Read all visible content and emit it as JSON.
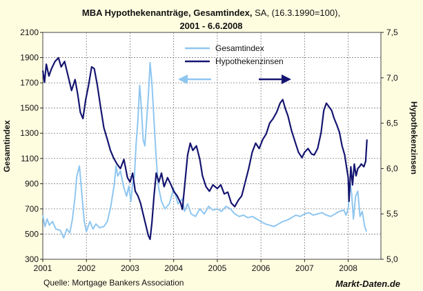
{
  "chart_data": {
    "type": "line",
    "title_bold": "MBA Hypothekenanträge, Gesamtindex,",
    "title_rest": " SA, (16.3.1990=100),",
    "subtitle": "2001 - 6.6.2008",
    "ylabel_left": "Gesamtindex",
    "ylabel_right": "Hypothekenzinsen",
    "source": "Quelle: Mortgage Bankers Association",
    "brand": "Markt-Daten.de",
    "x_ticks": [
      "2001",
      "2002",
      "2003",
      "2004",
      "2005",
      "2006",
      "2007",
      "2008"
    ],
    "xlim": [
      2001.0,
      2008.75
    ],
    "y_left": {
      "lim": [
        300,
        2100
      ],
      "ticks": [
        "300",
        "500",
        "700",
        "900",
        "1100",
        "1300",
        "1500",
        "1700",
        "1900",
        "2100"
      ]
    },
    "y_right": {
      "lim": [
        5.0,
        7.5
      ],
      "ticks": [
        "5,0",
        "5,5",
        "6,0",
        "6,5",
        "7,0",
        "7,5"
      ]
    },
    "legend": {
      "position": "top-center",
      "entries": [
        "Gesamtindex",
        "Hypothekenzinsen"
      ]
    },
    "colors": {
      "index": "#8ec6f0",
      "rate": "#141470",
      "plot_bg": "#ffffff",
      "page_bg": "#fffde0",
      "grid": "#7a7a7a"
    },
    "series": [
      {
        "name": "Gesamtindex",
        "axis": "left",
        "points": [
          [
            2001.0,
            650
          ],
          [
            2001.05,
            560
          ],
          [
            2001.1,
            620
          ],
          [
            2001.15,
            570
          ],
          [
            2001.22,
            600
          ],
          [
            2001.3,
            540
          ],
          [
            2001.4,
            530
          ],
          [
            2001.48,
            470
          ],
          [
            2001.55,
            540
          ],
          [
            2001.62,
            510
          ],
          [
            2001.68,
            620
          ],
          [
            2001.74,
            800
          ],
          [
            2001.78,
            960
          ],
          [
            2001.84,
            1040
          ],
          [
            2001.9,
            800
          ],
          [
            2001.95,
            600
          ],
          [
            2002.0,
            520
          ],
          [
            2002.08,
            600
          ],
          [
            2002.15,
            540
          ],
          [
            2002.22,
            580
          ],
          [
            2002.3,
            550
          ],
          [
            2002.4,
            560
          ],
          [
            2002.48,
            600
          ],
          [
            2002.56,
            720
          ],
          [
            2002.64,
            900
          ],
          [
            2002.68,
            1040
          ],
          [
            2002.72,
            960
          ],
          [
            2002.78,
            1000
          ],
          [
            2002.85,
            880
          ],
          [
            2002.92,
            800
          ],
          [
            2002.97,
            880
          ],
          [
            2003.02,
            760
          ],
          [
            2003.06,
            900
          ],
          [
            2003.1,
            960
          ],
          [
            2003.14,
            1220
          ],
          [
            2003.18,
            1400
          ],
          [
            2003.22,
            1680
          ],
          [
            2003.26,
            1500
          ],
          [
            2003.3,
            1250
          ],
          [
            2003.34,
            1200
          ],
          [
            2003.38,
            1400
          ],
          [
            2003.42,
            1600
          ],
          [
            2003.46,
            1860
          ],
          [
            2003.5,
            1700
          ],
          [
            2003.55,
            1400
          ],
          [
            2003.6,
            1100
          ],
          [
            2003.65,
            880
          ],
          [
            2003.72,
            760
          ],
          [
            2003.8,
            700
          ],
          [
            2003.9,
            740
          ],
          [
            2004.0,
            860
          ],
          [
            2004.1,
            740
          ],
          [
            2004.2,
            780
          ],
          [
            2004.25,
            680
          ],
          [
            2004.32,
            740
          ],
          [
            2004.4,
            660
          ],
          [
            2004.5,
            640
          ],
          [
            2004.6,
            700
          ],
          [
            2004.7,
            660
          ],
          [
            2004.8,
            720
          ],
          [
            2004.9,
            690
          ],
          [
            2005.0,
            700
          ],
          [
            2005.1,
            680
          ],
          [
            2005.2,
            720
          ],
          [
            2005.3,
            700
          ],
          [
            2005.4,
            660
          ],
          [
            2005.5,
            640
          ],
          [
            2005.6,
            650
          ],
          [
            2005.7,
            630
          ],
          [
            2005.8,
            640
          ],
          [
            2005.9,
            620
          ],
          [
            2006.0,
            600
          ],
          [
            2006.1,
            580
          ],
          [
            2006.2,
            570
          ],
          [
            2006.3,
            560
          ],
          [
            2006.4,
            580
          ],
          [
            2006.5,
            600
          ],
          [
            2006.6,
            610
          ],
          [
            2006.7,
            630
          ],
          [
            2006.8,
            650
          ],
          [
            2006.9,
            640
          ],
          [
            2007.0,
            660
          ],
          [
            2007.1,
            670
          ],
          [
            2007.2,
            650
          ],
          [
            2007.3,
            660
          ],
          [
            2007.4,
            670
          ],
          [
            2007.5,
            650
          ],
          [
            2007.6,
            640
          ],
          [
            2007.7,
            660
          ],
          [
            2007.8,
            680
          ],
          [
            2007.9,
            690
          ],
          [
            2007.95,
            650
          ],
          [
            2008.0,
            700
          ],
          [
            2008.05,
            900
          ],
          [
            2008.08,
            820
          ],
          [
            2008.12,
            620
          ],
          [
            2008.17,
            800
          ],
          [
            2008.22,
            840
          ],
          [
            2008.27,
            640
          ],
          [
            2008.32,
            680
          ],
          [
            2008.38,
            560
          ],
          [
            2008.42,
            520
          ]
        ]
      },
      {
        "name": "Hypothekenzinsen",
        "axis": "right",
        "points": [
          [
            2001.0,
            7.08
          ],
          [
            2001.04,
            6.95
          ],
          [
            2001.08,
            7.15
          ],
          [
            2001.14,
            7.02
          ],
          [
            2001.2,
            7.1
          ],
          [
            2001.28,
            7.18
          ],
          [
            2001.36,
            7.22
          ],
          [
            2001.42,
            7.12
          ],
          [
            2001.5,
            7.18
          ],
          [
            2001.58,
            7.02
          ],
          [
            2001.66,
            6.86
          ],
          [
            2001.74,
            6.98
          ],
          [
            2001.8,
            6.82
          ],
          [
            2001.86,
            6.62
          ],
          [
            2001.92,
            6.55
          ],
          [
            2001.98,
            6.75
          ],
          [
            2002.05,
            6.92
          ],
          [
            2002.12,
            7.12
          ],
          [
            2002.18,
            7.1
          ],
          [
            2002.25,
            6.92
          ],
          [
            2002.33,
            6.66
          ],
          [
            2002.4,
            6.45
          ],
          [
            2002.48,
            6.32
          ],
          [
            2002.55,
            6.2
          ],
          [
            2002.62,
            6.12
          ],
          [
            2002.7,
            6.05
          ],
          [
            2002.78,
            6.0
          ],
          [
            2002.86,
            6.1
          ],
          [
            2002.94,
            5.9
          ],
          [
            2003.0,
            5.85
          ],
          [
            2003.06,
            5.95
          ],
          [
            2003.12,
            5.75
          ],
          [
            2003.18,
            5.7
          ],
          [
            2003.24,
            5.62
          ],
          [
            2003.3,
            5.5
          ],
          [
            2003.36,
            5.38
          ],
          [
            2003.42,
            5.26
          ],
          [
            2003.46,
            5.22
          ],
          [
            2003.5,
            5.4
          ],
          [
            2003.55,
            5.7
          ],
          [
            2003.6,
            5.95
          ],
          [
            2003.66,
            5.85
          ],
          [
            2003.72,
            5.95
          ],
          [
            2003.78,
            5.8
          ],
          [
            2003.86,
            5.9
          ],
          [
            2003.94,
            5.82
          ],
          [
            2004.0,
            5.75
          ],
          [
            2004.08,
            5.7
          ],
          [
            2004.16,
            5.62
          ],
          [
            2004.2,
            5.55
          ],
          [
            2004.26,
            5.85
          ],
          [
            2004.32,
            6.15
          ],
          [
            2004.38,
            6.28
          ],
          [
            2004.44,
            6.2
          ],
          [
            2004.52,
            6.25
          ],
          [
            2004.6,
            6.1
          ],
          [
            2004.66,
            5.92
          ],
          [
            2004.74,
            5.8
          ],
          [
            2004.82,
            5.75
          ],
          [
            2004.9,
            5.82
          ],
          [
            2005.0,
            5.78
          ],
          [
            2005.08,
            5.82
          ],
          [
            2005.16,
            5.72
          ],
          [
            2005.24,
            5.74
          ],
          [
            2005.32,
            5.62
          ],
          [
            2005.4,
            5.58
          ],
          [
            2005.48,
            5.65
          ],
          [
            2005.56,
            5.7
          ],
          [
            2005.64,
            5.85
          ],
          [
            2005.72,
            6.0
          ],
          [
            2005.8,
            6.18
          ],
          [
            2005.88,
            6.28
          ],
          [
            2005.96,
            6.22
          ],
          [
            2006.04,
            6.32
          ],
          [
            2006.12,
            6.38
          ],
          [
            2006.2,
            6.5
          ],
          [
            2006.28,
            6.55
          ],
          [
            2006.36,
            6.62
          ],
          [
            2006.44,
            6.72
          ],
          [
            2006.5,
            6.76
          ],
          [
            2006.56,
            6.66
          ],
          [
            2006.62,
            6.58
          ],
          [
            2006.7,
            6.42
          ],
          [
            2006.78,
            6.3
          ],
          [
            2006.86,
            6.18
          ],
          [
            2006.94,
            6.12
          ],
          [
            2007.0,
            6.18
          ],
          [
            2007.08,
            6.22
          ],
          [
            2007.16,
            6.16
          ],
          [
            2007.22,
            6.15
          ],
          [
            2007.3,
            6.22
          ],
          [
            2007.38,
            6.4
          ],
          [
            2007.44,
            6.64
          ],
          [
            2007.5,
            6.72
          ],
          [
            2007.56,
            6.68
          ],
          [
            2007.62,
            6.64
          ],
          [
            2007.68,
            6.55
          ],
          [
            2007.74,
            6.48
          ],
          [
            2007.8,
            6.4
          ],
          [
            2007.86,
            6.25
          ],
          [
            2007.92,
            6.15
          ],
          [
            2007.96,
            6.02
          ],
          [
            2008.0,
            5.9
          ],
          [
            2008.02,
            5.64
          ],
          [
            2008.06,
            6.02
          ],
          [
            2008.1,
            5.82
          ],
          [
            2008.14,
            6.05
          ],
          [
            2008.18,
            5.92
          ],
          [
            2008.22,
            6.0
          ],
          [
            2008.26,
            6.02
          ],
          [
            2008.3,
            6.05
          ],
          [
            2008.36,
            6.02
          ],
          [
            2008.4,
            6.08
          ],
          [
            2008.43,
            6.32
          ]
        ]
      }
    ]
  }
}
